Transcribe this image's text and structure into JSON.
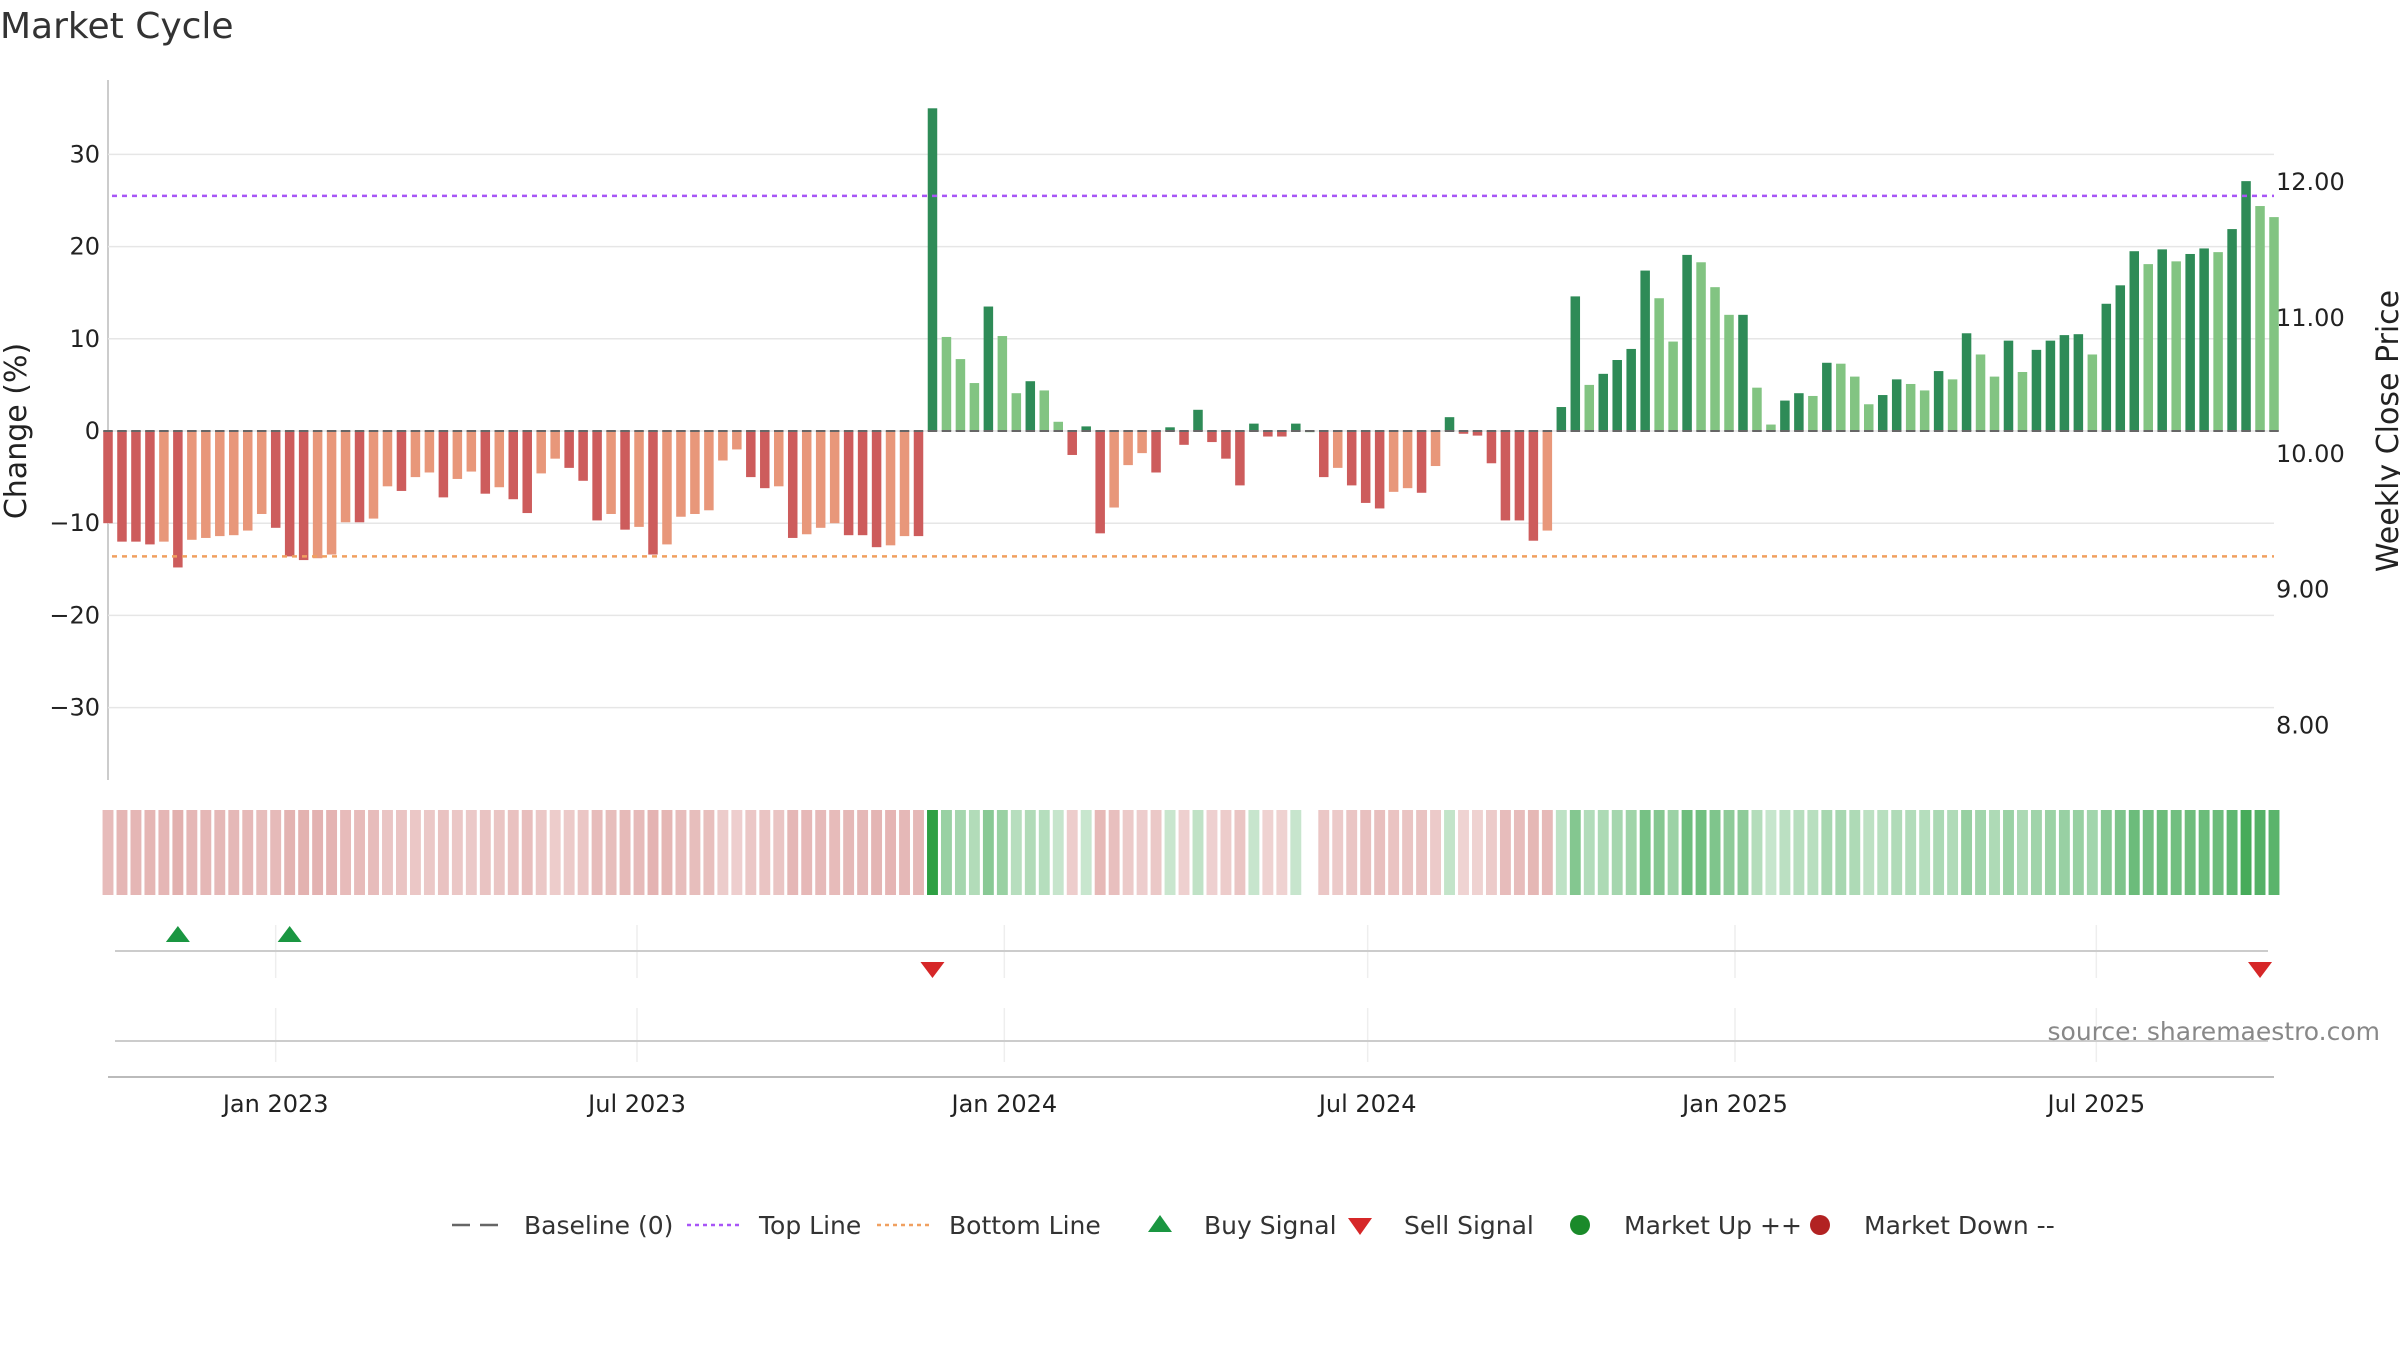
{
  "chart_data": {
    "type": "bar",
    "title": "Market Cycle",
    "source": "source: sharemaestro.com",
    "ylabel_left": "Change (%)",
    "ylabel_right": "Weekly Close Price",
    "ylim_left": [
      -38,
      38
    ],
    "ylim_right": [
      7.6,
      12.75
    ],
    "yticks_left": [
      30,
      20,
      10,
      0,
      -10,
      -20,
      -30
    ],
    "yticks_left_labels": [
      "30",
      "20",
      "10",
      "0",
      "−10",
      "−20",
      "−30"
    ],
    "yticks_right": [
      12,
      11,
      10,
      9,
      8
    ],
    "yticks_right_labels": [
      "12.00",
      "11.00",
      "10.00",
      "9.00",
      "8.00"
    ],
    "top_line": 25.5,
    "bottom_line": -13.6,
    "x_start": "2022-10-09",
    "x_end": "2025-09-28",
    "week_start": "2022-10-09",
    "xtick_dates": [
      "2023-01-01",
      "2023-07-01",
      "2024-01-01",
      "2024-07-01",
      "2025-01-01",
      "2025-07-01"
    ],
    "xtick_labels": [
      "Jan 2023",
      "Jul 2023",
      "Jan 2024",
      "Jul 2024",
      "Jan 2025",
      "Jul 2025"
    ],
    "values": [
      -10,
      -12,
      -12,
      -12.3,
      -12,
      -14.8,
      -11.8,
      -11.6,
      -11.4,
      -11.3,
      -10.8,
      -9,
      -10.5,
      -13.6,
      -14,
      -13.8,
      -13.4,
      -9.9,
      -9.9,
      -9.5,
      -6,
      -6.5,
      -5,
      -4.5,
      -7.2,
      -5.2,
      -4.4,
      -6.8,
      -6.1,
      -7.4,
      -8.9,
      -4.6,
      -3,
      -4,
      -5.4,
      -9.7,
      -9,
      -10.7,
      -10.4,
      -13.4,
      -12.3,
      -9.3,
      -9,
      -8.6,
      -3.2,
      -2,
      -5,
      -6.2,
      -6,
      -11.6,
      -11.2,
      -10.5,
      -10,
      -11.3,
      -11.3,
      -12.6,
      -12.4,
      -11.4,
      -11.4,
      35,
      10.2,
      7.8,
      5.2,
      13.5,
      10.3,
      4.1,
      5.4,
      4.4,
      1,
      -2.6,
      0.5,
      -11.1,
      -8.3,
      -3.7,
      -2.4,
      -4.5,
      0.4,
      -1.5,
      2.3,
      -1.2,
      -3,
      -5.9,
      0.8,
      -0.6,
      -0.6,
      0.8,
      0,
      -5,
      -4,
      -5.9,
      -7.8,
      -8.4,
      -6.6,
      -6.2,
      -6.7,
      -3.8,
      1.5,
      -0.3,
      -0.5,
      -3.5,
      -9.7,
      -9.7,
      -11.9,
      -10.8,
      2.6,
      14.6,
      5,
      6.2,
      7.7,
      8.9,
      17.4,
      14.4,
      9.7,
      19.1,
      18.3,
      15.6,
      12.6,
      12.6,
      4.7,
      0.7,
      3.3,
      4.1,
      3.8,
      7.4,
      7.3,
      5.9,
      2.9,
      3.9,
      5.6,
      5.1,
      4.4,
      6.5,
      5.6,
      10.6,
      8.3,
      5.9,
      9.8,
      6.4,
      8.8,
      9.8,
      10.4,
      10.5,
      8.3,
      13.8,
      15.8,
      19.5,
      18.1,
      19.7,
      18.4,
      19.2,
      19.8,
      19.4,
      21.9,
      27.1,
      24.4,
      23.2
    ],
    "signals": [
      {
        "type": "buy",
        "week": 5
      },
      {
        "type": "buy",
        "week": 13
      },
      {
        "type": "sell",
        "week": 59
      },
      {
        "type": "sell",
        "week": 154
      }
    ],
    "legend": [
      {
        "label": "Baseline (0)",
        "kind": "dash",
        "color": "#666666"
      },
      {
        "label": "Top Line",
        "kind": "dot",
        "color": "#a855f7"
      },
      {
        "label": "Bottom Line",
        "kind": "dot",
        "color": "#f0a060"
      },
      {
        "label": "Buy Signal",
        "kind": "up",
        "color": "#1a9641"
      },
      {
        "label": "Sell Signal",
        "kind": "down",
        "color": "#d62728"
      },
      {
        "label": "Market Up ++",
        "kind": "circle",
        "color": "#1a8a2a"
      },
      {
        "label": "Market Down --",
        "kind": "circle",
        "color": "#b22222"
      }
    ],
    "colors": {
      "strong_down": "#cd5c5c",
      "weak_down": "#e8977a",
      "strong_up": "#2e8b57",
      "weak_up": "#82c482",
      "top_line": "#a855f7",
      "bottom_line": "#f0a060",
      "buy": "#1a9641",
      "sell": "#d62728"
    }
  }
}
